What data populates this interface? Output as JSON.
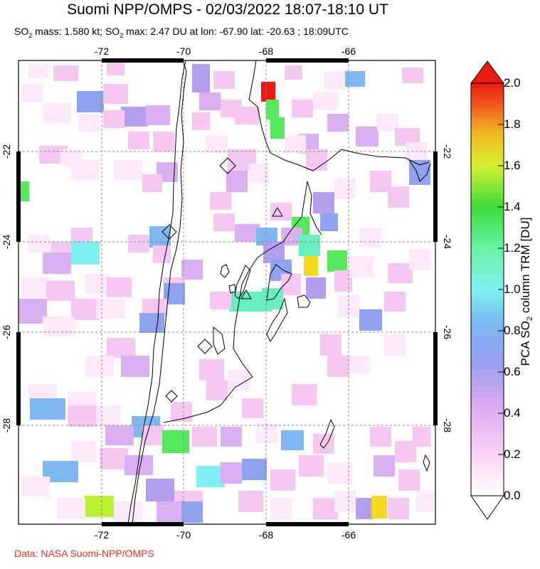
{
  "header": {
    "title": "Suomi NPP/OMPS - 02/03/2022 18:07-18:10 UT",
    "subtitle_parts": {
      "a": "SO",
      "a_sub": "2",
      "b": " mass: 1.580 kt; SO",
      "b_sub": "2",
      "c": " max: 2.47 DU at lon: -67.90 lat: -20.63 ; 18:09UTC"
    }
  },
  "footer": {
    "credit": "Data: NASA Suomi-NPP/OMPS"
  },
  "axes": {
    "lon_ticks": [
      "-72",
      "-70",
      "-68",
      "-66"
    ],
    "lat_ticks": [
      "-22",
      "-24",
      "-26",
      "-28"
    ]
  },
  "colorbar": {
    "title_pre": "PCA SO",
    "title_sub": "2",
    "title_post": " column TRM [DU]",
    "ticks": [
      "0.0",
      "0.2",
      "0.4",
      "0.6",
      "0.8",
      "1.0",
      "1.2",
      "1.4",
      "1.6",
      "1.8",
      "2.0"
    ],
    "colors": [
      "#ffffff",
      "#fbd3f5",
      "#d9a9f2",
      "#9b9ff0",
      "#79b7f1",
      "#7ef2f0",
      "#67f0a6",
      "#3fdc3a",
      "#d6f02e",
      "#f3b624",
      "#f0561b",
      "#e81b10"
    ]
  },
  "map_data": {
    "lon_range": [
      -74,
      -62
    ],
    "lat_range": [
      -20,
      -30
    ],
    "colors": {
      "pink_light": "#fde9fb",
      "pink": "#f6c8f1",
      "lavender": "#dab0f2",
      "purple": "#b59ef0",
      "blue": "#8ea2ee",
      "skyblue": "#7fb7f0",
      "cyan": "#7ff0f2",
      "aqua": "#69eec2",
      "green": "#55e85c",
      "lime": "#b8f235",
      "yellow": "#f5d820",
      "red": "#ee1a10"
    }
  }
}
